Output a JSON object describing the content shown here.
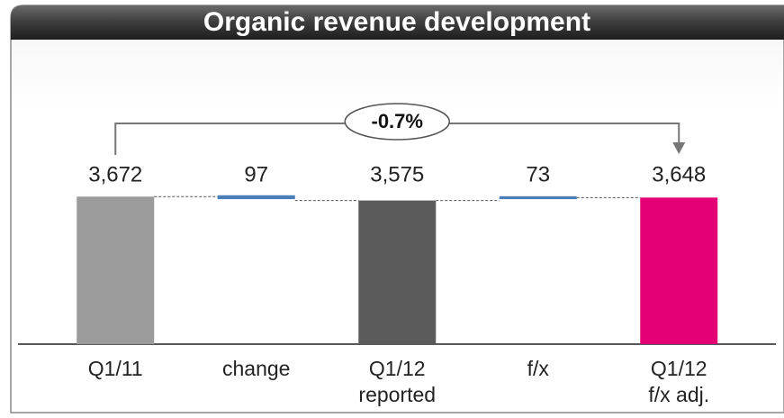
{
  "chart_data": {
    "type": "waterfall",
    "title": "Organic revenue development",
    "categories": [
      [
        "Q1/11"
      ],
      [
        "change"
      ],
      [
        "Q1/12",
        "reported"
      ],
      [
        "f/x"
      ],
      [
        "Q1/12",
        "f/x adj."
      ]
    ],
    "values": [
      3672,
      97,
      3575,
      73,
      3648
    ],
    "value_labels": [
      "3,672",
      "97",
      "3,575",
      "73",
      "3,648"
    ],
    "measures": [
      "total",
      "decrease",
      "total",
      "increase",
      "total"
    ],
    "colors": [
      "#9b9b9b",
      "#4a7fb8",
      "#5b5b5b",
      "#4a7fb8",
      "#e20074"
    ],
    "ylim": [
      0,
      3700
    ],
    "annotation": "-0.7%"
  }
}
